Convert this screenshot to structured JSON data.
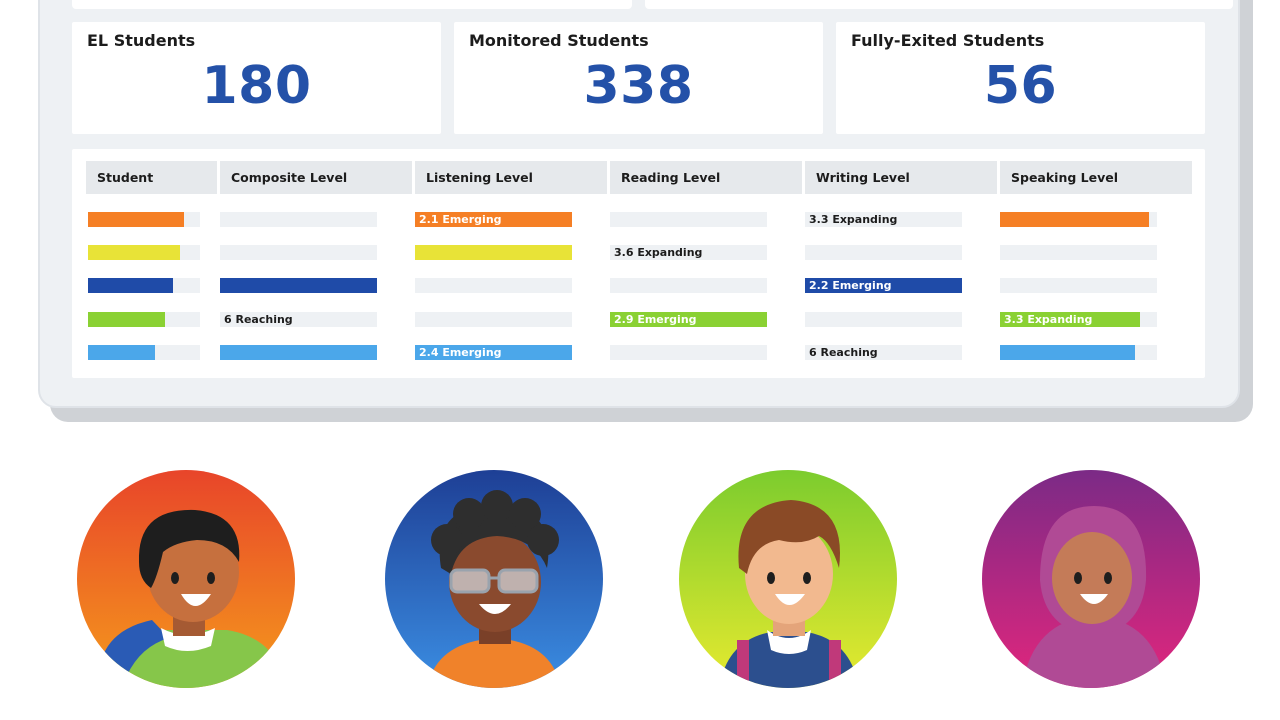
{
  "colors": {
    "accent_blue": "#2451a8",
    "orange": "#f57f25",
    "yellow": "#e8e337",
    "navy": "#1f4ba8",
    "green": "#8ad133",
    "sky": "#4ba7ea",
    "track": "#eef1f4",
    "header_bg": "#e6e9ec"
  },
  "stats": [
    {
      "label": "EL Students",
      "value": "180"
    },
    {
      "label": "Monitored Students",
      "value": "338"
    },
    {
      "label": "Fully-Exited Students",
      "value": "56"
    }
  ],
  "table": {
    "headers": [
      "Student",
      "Composite Level",
      "Listening Level",
      "Reading Level",
      "Writing Level",
      "Speaking Level"
    ],
    "rows": [
      {
        "color": "orange",
        "cells": [
          {
            "fill": 0.86,
            "text": ""
          },
          {
            "fill": 0,
            "text": ""
          },
          {
            "fill": 1,
            "text": "2.1 Emerging"
          },
          {
            "fill": 0,
            "text": ""
          },
          {
            "fill": 0,
            "text": "3.3 Expanding"
          },
          {
            "fill": 0.95,
            "text": ""
          }
        ]
      },
      {
        "color": "yellow",
        "cells": [
          {
            "fill": 0.82,
            "text": ""
          },
          {
            "fill": 0,
            "text": ""
          },
          {
            "fill": 1,
            "text": ""
          },
          {
            "fill": 0,
            "text": "3.6 Expanding"
          },
          {
            "fill": 0,
            "text": ""
          },
          {
            "fill": 0,
            "text": ""
          }
        ]
      },
      {
        "color": "navy",
        "cells": [
          {
            "fill": 0.76,
            "text": ""
          },
          {
            "fill": 1,
            "text": ""
          },
          {
            "fill": 0,
            "text": ""
          },
          {
            "fill": 0,
            "text": ""
          },
          {
            "fill": 1,
            "text": "2.2 Emerging"
          },
          {
            "fill": 0,
            "text": ""
          }
        ]
      },
      {
        "color": "green",
        "cells": [
          {
            "fill": 0.69,
            "text": ""
          },
          {
            "fill": 0,
            "text": "6 Reaching"
          },
          {
            "fill": 0,
            "text": ""
          },
          {
            "fill": 1,
            "text": "2.9 Emerging"
          },
          {
            "fill": 0,
            "text": ""
          },
          {
            "fill": 0.89,
            "text": "3.3 Expanding"
          }
        ]
      },
      {
        "color": "sky",
        "cells": [
          {
            "fill": 0.6,
            "text": ""
          },
          {
            "fill": 1,
            "text": ""
          },
          {
            "fill": 1,
            "text": "2.4 Emerging"
          },
          {
            "fill": 0,
            "text": ""
          },
          {
            "fill": 0,
            "text": "6 Reaching"
          },
          {
            "fill": 0.86,
            "text": ""
          }
        ]
      }
    ]
  },
  "avatars": [
    {
      "name": "student-avatar-1-icon",
      "gradient": [
        "#e8452a",
        "#f59a1c"
      ]
    },
    {
      "name": "student-avatar-2-icon",
      "gradient": [
        "#1e3f95",
        "#3b8ee3"
      ]
    },
    {
      "name": "student-avatar-3-icon",
      "gradient": [
        "#7ccc2e",
        "#e7ea2f"
      ]
    },
    {
      "name": "student-avatar-4-icon",
      "gradient": [
        "#7b2a86",
        "#e2267d"
      ]
    }
  ]
}
